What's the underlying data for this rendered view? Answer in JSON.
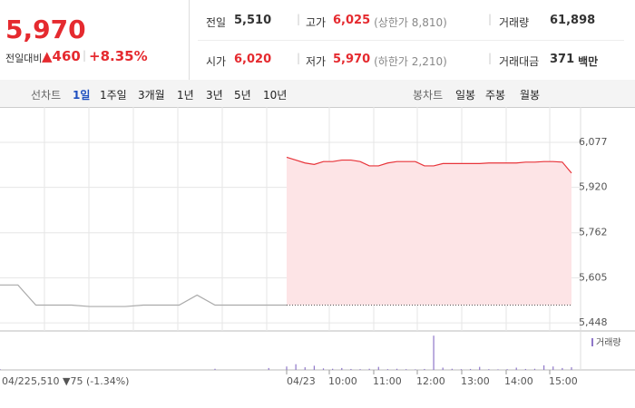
{
  "header": {
    "price": "5,970",
    "change_label": "전일대비",
    "change": "▲460",
    "change_pct": "+8.35%",
    "stats": [
      {
        "label": "전일",
        "value": "5,510"
      },
      {
        "label": "고가",
        "value": "6,025",
        "extra": "(상한가 8,810)"
      },
      {
        "label": "거래량",
        "value": "61,898"
      },
      {
        "label": "시가",
        "value": "6,020"
      },
      {
        "label": "저가",
        "value": "5,970",
        "extra": "(하한가 2,210)"
      },
      {
        "label": "거래대금",
        "value": "371",
        "unit": "백만"
      }
    ]
  },
  "tabs": {
    "line_label": "선차트",
    "line_periods": [
      "1일",
      "1주일",
      "3개월",
      "1년",
      "3년",
      "5년",
      "10년"
    ],
    "candle_label": "봉차트",
    "candle_periods": [
      "일봉",
      "주봉",
      "월봉"
    ]
  },
  "chart_data": {
    "type": "line",
    "ylim": [
      5420,
      6200
    ],
    "yticks": [
      {
        "value": 6077,
        "label": "6,077"
      },
      {
        "value": 5920,
        "label": "5,920"
      },
      {
        "value": 5762,
        "label": "5,762"
      },
      {
        "value": 5605,
        "label": "5,605"
      },
      {
        "value": 5448,
        "label": "5,448"
      }
    ],
    "x_labels": [
      "04/22",
      "04/23",
      "10:00",
      "11:00",
      "12:00",
      "13:00",
      "14:00",
      "15:00"
    ],
    "prev_day_note": "5,510 ▼75 (-1.34%)",
    "reference_line": 5510,
    "series": [
      {
        "color": "#aaaaaa",
        "values": [
          5580,
          5580,
          5510,
          5510,
          5510,
          5505,
          5505,
          5505,
          5510,
          5510,
          5510,
          5545,
          5510,
          5510,
          5510,
          5510,
          5510
        ]
      },
      {
        "color": "#e8343a",
        "fill": "#fde4e6",
        "values": [
          6025,
          6015,
          6005,
          6000,
          6010,
          6010,
          6015,
          6015,
          6010,
          5995,
          5995,
          6005,
          6010,
          6010,
          6010,
          5995,
          5995,
          6003,
          6003,
          6003,
          6003,
          6003,
          6005,
          6005,
          6005,
          6005,
          6008,
          6008,
          6010,
          6010,
          6008,
          5970
        ]
      }
    ],
    "volume": {
      "name": "거래량",
      "color": "#8f77c9",
      "ylim": [
        0,
        10000
      ],
      "series": [
        [
          200,
          0,
          0,
          0,
          0,
          0,
          0,
          0,
          0,
          0,
          0,
          0,
          300,
          0,
          0,
          500,
          0
        ],
        [
          900,
          1500,
          700,
          1100,
          400,
          300,
          500,
          250,
          200,
          300,
          800,
          200,
          300,
          200,
          150,
          250,
          9000,
          600,
          300,
          200,
          250,
          800,
          200,
          150,
          200,
          600,
          250,
          300,
          1200,
          900,
          500,
          700
        ]
      ]
    }
  }
}
